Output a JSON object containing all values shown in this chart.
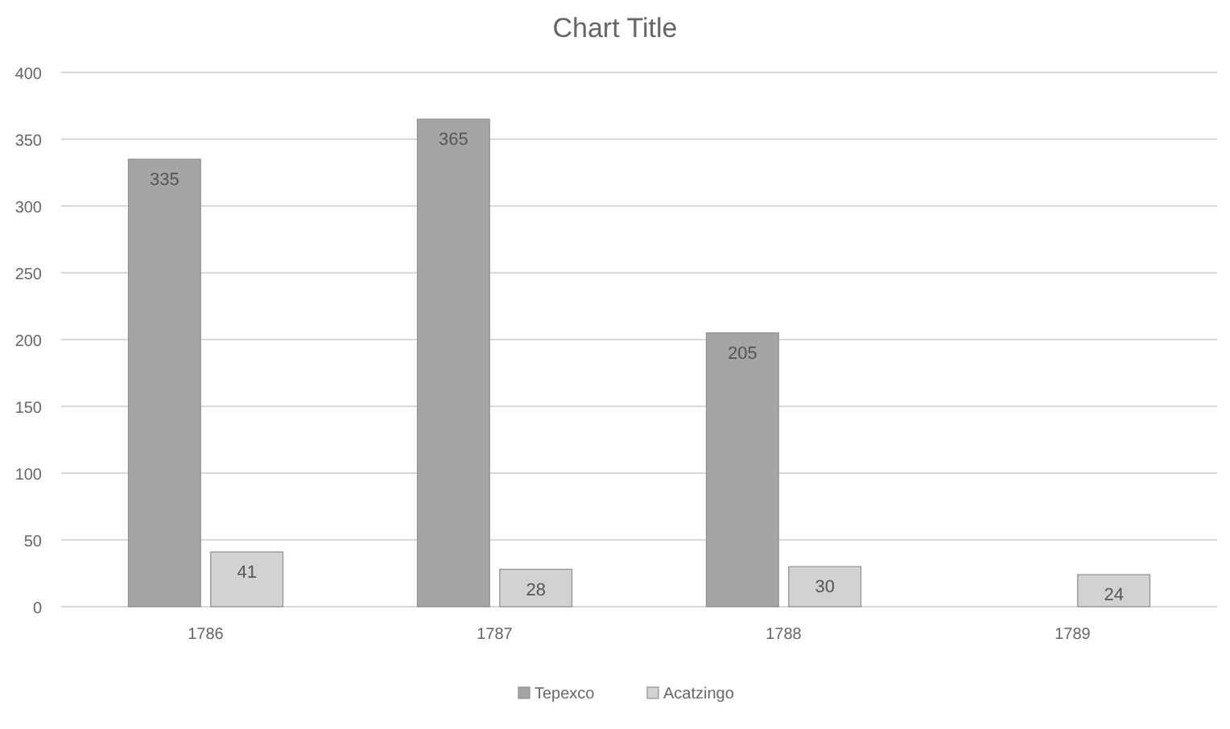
{
  "chart_data": {
    "type": "bar",
    "title": "Chart Title",
    "categories": [
      "1786",
      "1787",
      "1788",
      "1789"
    ],
    "series": [
      {
        "name": "Tepexco",
        "color": "#a5a5a5",
        "values": [
          335,
          365,
          205,
          null
        ]
      },
      {
        "name": "Acatzingo",
        "color": "#d2d2d2",
        "values": [
          41,
          28,
          30,
          24
        ]
      }
    ],
    "ylim": [
      0,
      400
    ],
    "yticks": [
      0,
      50,
      100,
      150,
      200,
      250,
      300,
      350,
      400
    ],
    "grid": "y",
    "legend": "bottom",
    "data_labels": true
  }
}
